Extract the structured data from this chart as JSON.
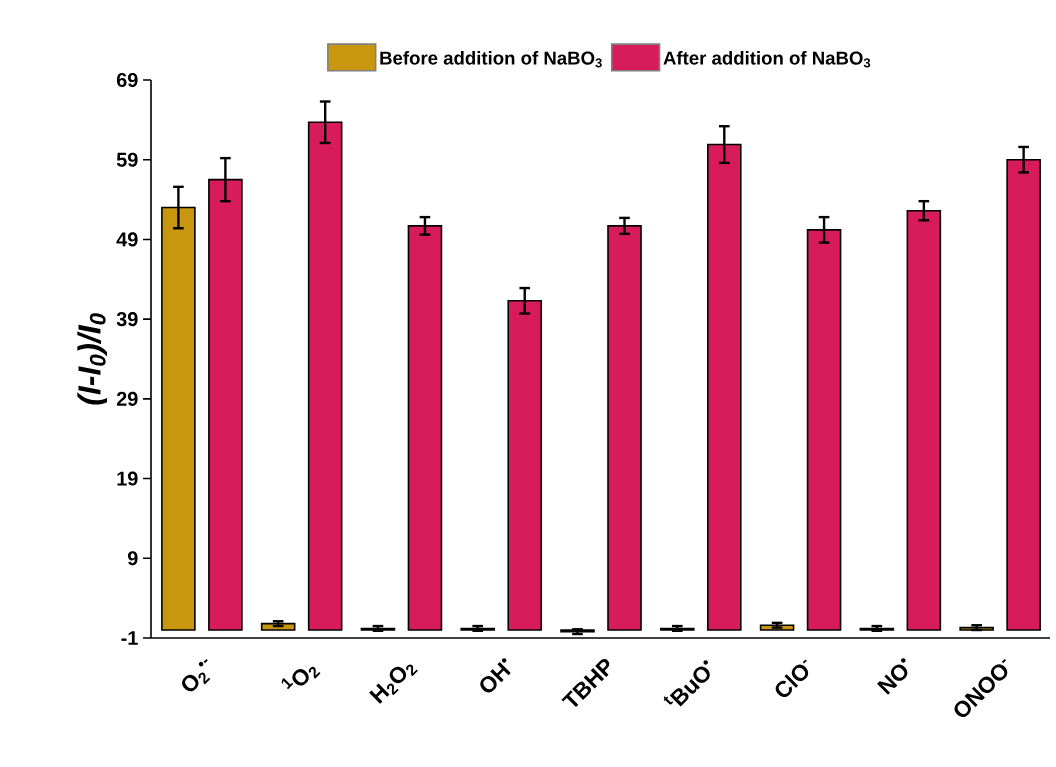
{
  "chart_data": {
    "type": "bar",
    "ylabel": "(I-I$_{0}$)/I$_{0}$",
    "categories": [
      "O$_{2}$$^{•-}$",
      "$^{1}$O$_{2}$",
      "H$_{2}$O$_{2}$",
      "OH$^{•}$",
      "TBHP",
      "$^{t}$BuO$^{•}$",
      "ClO$^{-}$",
      "NO$^{•}$",
      "ONOO$^{-}$"
    ],
    "series": [
      {
        "name": "Before addition of NaBO$_{3}$",
        "color": "#c9960f",
        "values": [
          53.0,
          0.8,
          0.2,
          0.2,
          -0.2,
          0.2,
          0.6,
          0.2,
          0.3
        ],
        "errors": [
          2.6,
          0.3,
          0.3,
          0.3,
          0.3,
          0.3,
          0.3,
          0.3,
          0.3
        ]
      },
      {
        "name": "After addition of NaBO$_{3}$",
        "color": "#d81b5a",
        "values": [
          56.5,
          63.7,
          50.7,
          41.3,
          50.7,
          60.9,
          50.2,
          52.6,
          59.0
        ],
        "errors": [
          2.7,
          2.6,
          1.1,
          1.6,
          1.0,
          2.3,
          1.6,
          1.2,
          1.6
        ]
      }
    ],
    "ylim": [
      -1,
      69
    ],
    "yticks": [
      -1,
      9,
      19,
      29,
      39,
      49,
      59,
      69
    ],
    "legend": "top"
  }
}
